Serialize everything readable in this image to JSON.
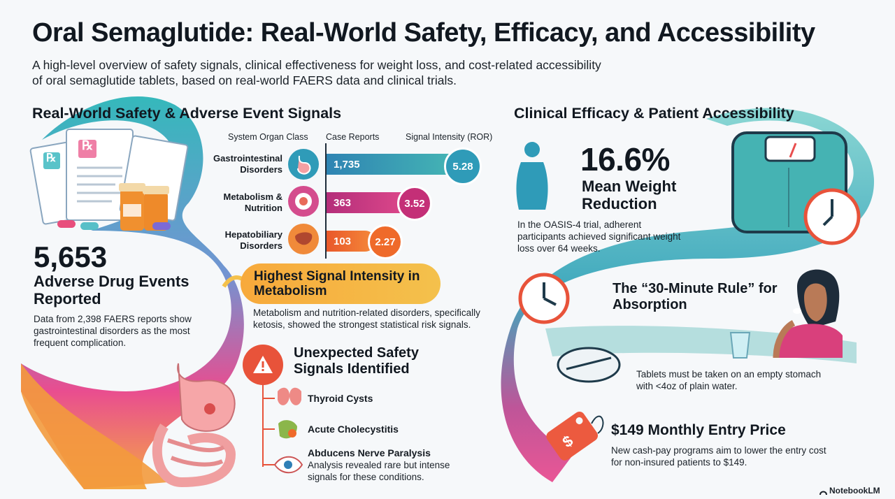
{
  "header": {
    "title": "Oral Semaglutide: Real-World Safety, Efficacy, and Accessibility",
    "subtitle": "A high-level overview of safety signals, clinical effectiveness for weight loss, and cost-related accessibility of oral semaglutide tablets, based on real-world FAERS data and clinical trials."
  },
  "safety": {
    "heading": "Real-World Safety & Adverse Event Signals",
    "columns": {
      "organ_class": "System Organ Class",
      "case_reports": "Case Reports",
      "signal_intensity": "Signal Intensity (ROR)"
    },
    "rows": [
      {
        "label": "Gastrointestinal Disorders",
        "cases": "1,735",
        "case_count": 1735,
        "ror": "5.28",
        "icon": "stomach-icon",
        "color": "#2f9bb8"
      },
      {
        "label": "Metabolism & Nutrition",
        "cases": "363",
        "case_count": 363,
        "ror": "3.52",
        "icon": "metabolism-icon",
        "color": "#c42f77"
      },
      {
        "label": "Hepatobiliary Disorders",
        "cases": "103",
        "case_count": 103,
        "ror": "2.27",
        "icon": "liver-icon",
        "color": "#ef6a2a"
      }
    ],
    "total_events": "5,653",
    "total_label": "Adverse Drug Events Reported",
    "total_note": "Data from 2,398 FAERS reports show gastrointestinal disorders as the most frequent complication.",
    "highlight_title": "Highest Signal Intensity in Metabolism",
    "highlight_note": "Metabolism and nutrition-related disorders, specifically ketosis, showed the strongest statistical risk signals.",
    "unexpected_title": "Unexpected Safety Signals Identified",
    "signals": [
      {
        "label": "Thyroid Cysts",
        "icon": "thyroid-icon"
      },
      {
        "label": "Acute Cholecystitis",
        "icon": "gallbladder-icon"
      },
      {
        "label": "Abducens Nerve Paralysis",
        "icon": "eye-icon"
      }
    ],
    "signals_note": "Analysis revealed rare but intense signals for these conditions."
  },
  "efficacy": {
    "heading": "Clinical Efficacy & Patient Accessibility",
    "weight_value": "16.6%",
    "weight_label": "Mean Weight Reduction",
    "weight_note": "In the OASIS-4 trial, adherent participants achieved significant weight loss over 64 weeks.",
    "rule_title": "The “30-Minute Rule” for Absorption",
    "rule_note": "Tablets must be taken on an empty stomach with <4oz of plain water.",
    "price_title": "$149 Monthly Entry Price",
    "price_note": "New cash-pay programs aim to lower the entry cost for non-insured patients to $149.",
    "price_tag_symbol": "$"
  },
  "rx_symbol": "℞",
  "brand": "NotebookLM",
  "colors": {
    "teal": "#2f9bb8",
    "magenta": "#c42f77",
    "orange": "#ef6a2a",
    "amber": "#f7a93b",
    "warning": "#e8533a"
  }
}
